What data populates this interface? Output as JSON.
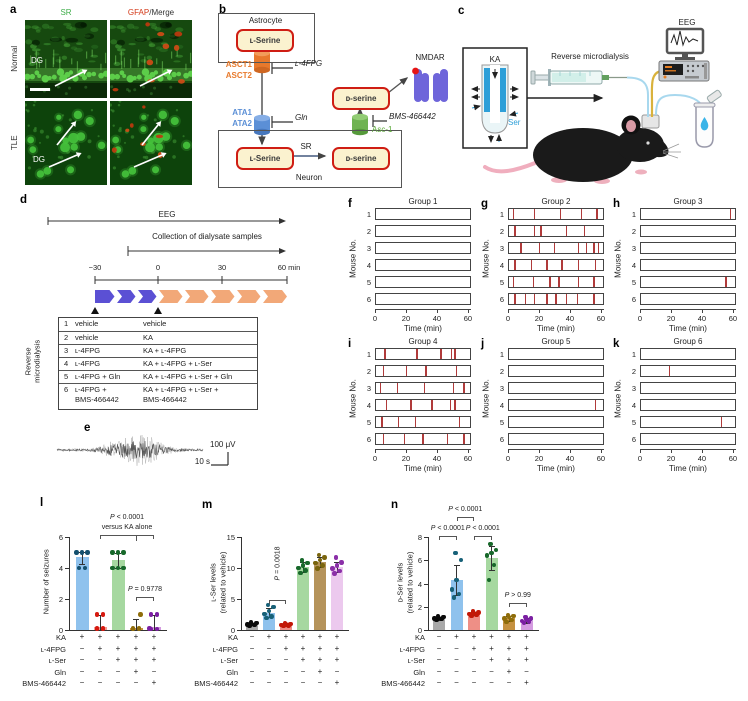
{
  "figure": {
    "a": {
      "letter": "a",
      "col_sr": "SR",
      "col_gfap": "GFAP",
      "col_merge": "/Merge",
      "row1": "Normal",
      "row2": "TLE",
      "dg": "DG"
    },
    "b": {
      "letter": "b",
      "astrocyte": "Astrocyte",
      "neuron": "Neuron",
      "pill_l_serine": "ʟ-Serine",
      "pill_d_serine": "ᴅ-serine",
      "asct1": "ASCT1",
      "asct2": "ASCT2",
      "ata1": "ATA1",
      "ata2": "ATA2",
      "inhib_l4fpg": "ʟ-4FPG",
      "inhib_gln": "Gln",
      "inhib_bms": "BMS-466442",
      "sr": "SR",
      "asc1": "Asc-1",
      "nmdar": "NMDAR"
    },
    "c": {
      "letter": "c",
      "ka": "KA",
      "ser": "Ser",
      "reverse": "Reverse microdialysis",
      "eeg": "EEG"
    },
    "d": {
      "letter": "d",
      "eeg": "EEG",
      "collection": "Collection of dialysate samples",
      "ticks": [
        "−30",
        "0",
        "30",
        "60 min"
      ],
      "side_label": "Reverse\nmicrodialysis",
      "table": [
        {
          "n": "1",
          "pre": "vehicle",
          "post": "vehicle"
        },
        {
          "n": "2",
          "pre": "vehicle",
          "post": "KA"
        },
        {
          "n": "3",
          "pre": "ʟ-4FPG",
          "post": "KA + ʟ-4FPG"
        },
        {
          "n": "4",
          "pre": "ʟ-4FPG",
          "post": "KA + ʟ-4FPG + ʟ-Ser"
        },
        {
          "n": "5",
          "pre": "ʟ-4FPG + Gln",
          "post": "KA + ʟ-4FPG + ʟ-Ser + Gln"
        },
        {
          "n": "6",
          "pre": "ʟ-4FPG +\nBMS-466442",
          "post": "KA + ʟ-4FPG + ʟ-Ser +\nBMS-466442"
        }
      ]
    },
    "e": {
      "letter": "e",
      "scale_v": "100 μV",
      "scale_t": "10 s"
    }
  },
  "colors": {
    "timeline_pre": "#5b50d4",
    "timeline_post": "#f2a878",
    "raster_tick": "#b03a3a",
    "sr_green": "#3fae4a",
    "gfap_red": "#d43a1a",
    "transporter_orange": "#e87a2c",
    "transporter_blue": "#5b8fd6",
    "transporter_green": "#6fb351",
    "nmdar_purple": "#6e65da"
  },
  "chart_data": [
    {
      "type": "raster",
      "panel_letter": "f",
      "title": "Group 1",
      "ylabel": "Mouse No.",
      "xlabel": "Time (min)",
      "xticks": [
        0,
        20,
        40,
        60
      ],
      "xmax": 62,
      "mice": [
        "1",
        "2",
        "3",
        "4",
        "5",
        "6"
      ],
      "events": [
        [],
        [],
        [],
        [],
        [],
        []
      ]
    },
    {
      "type": "raster",
      "panel_letter": "g",
      "title": "Group 2",
      "ylabel": "Mouse No.",
      "xlabel": "Time (min)",
      "xticks": [
        0,
        20,
        40,
        60
      ],
      "xmax": 62,
      "mice": [
        "1",
        "2",
        "3",
        "4",
        "5",
        "6"
      ],
      "events": [
        [
          3,
          17,
          34,
          48,
          58
        ],
        [
          4,
          17,
          21,
          38,
          50
        ],
        [
          8,
          20,
          30,
          46,
          51,
          56,
          59
        ],
        [
          4,
          15,
          25,
          35,
          46,
          57
        ],
        [
          3,
          16,
          27,
          33,
          46,
          56
        ],
        [
          4,
          11,
          17,
          25,
          31,
          38,
          45,
          56
        ]
      ]
    },
    {
      "type": "raster",
      "panel_letter": "h",
      "title": "Group 3",
      "ylabel": "Mouse No.",
      "xlabel": "Time (min)",
      "xticks": [
        0,
        20,
        40,
        60
      ],
      "xmax": 62,
      "mice": [
        "1",
        "2",
        "3",
        "4",
        "5",
        "6"
      ],
      "events": [
        [
          59
        ],
        [],
        [],
        [],
        [
          56
        ],
        []
      ]
    },
    {
      "type": "raster",
      "panel_letter": "i",
      "title": "Group 4",
      "ylabel": "Mouse No.",
      "xlabel": "Time (min)",
      "xticks": [
        0,
        20,
        40,
        60
      ],
      "xmax": 62,
      "mice": [
        "1",
        "2",
        "3",
        "4",
        "5",
        "6"
      ],
      "events": [
        [
          6,
          27,
          43,
          50,
          52
        ],
        [
          5,
          20,
          33,
          53
        ],
        [
          3,
          14,
          32,
          51,
          58
        ],
        [
          7,
          23,
          37,
          49,
          52
        ],
        [
          4,
          15,
          26,
          55
        ],
        [
          5,
          19,
          31,
          47,
          58
        ]
      ]
    },
    {
      "type": "raster",
      "panel_letter": "j",
      "title": "Group 5",
      "ylabel": "Mouse No.",
      "xlabel": "Time (min)",
      "xticks": [
        0,
        20,
        40,
        60
      ],
      "xmax": 62,
      "mice": [
        "1",
        "2",
        "3",
        "4",
        "5",
        "6"
      ],
      "events": [
        [],
        [],
        [],
        [
          57
        ],
        [],
        []
      ]
    },
    {
      "type": "raster",
      "panel_letter": "k",
      "title": "Group 6",
      "ylabel": "Mouse No.",
      "xlabel": "Time (min)",
      "xticks": [
        0,
        20,
        40,
        60
      ],
      "xmax": 62,
      "mice": [
        "1",
        "2",
        "3",
        "4",
        "5",
        "6"
      ],
      "events": [
        [],
        [
          19
        ],
        [],
        [],
        [
          53
        ],
        []
      ]
    },
    {
      "type": "bar",
      "id": "l",
      "panel_letter": "l",
      "ylabel_lines": [
        "Number of seizures"
      ],
      "yticks": [
        0,
        2,
        4,
        6
      ],
      "groups": [
        {
          "bar": 4.7,
          "err": [
            4.25,
            5.05
          ],
          "points": [
            4,
            4,
            5,
            5,
            5
          ],
          "bar_color": "#8fc2ed",
          "dot_color": "#14506e"
        },
        {
          "bar": 0.17,
          "err": [
            0.02,
            0.95
          ],
          "points": [
            0.05,
            0.05,
            0.1,
            0.1,
            1,
            1
          ],
          "bar_color": "#f29a92",
          "dot_color": "#d6190f"
        },
        {
          "bar": 4.5,
          "err": [
            4.0,
            5.0
          ],
          "points": [
            4,
            4,
            4,
            5,
            5,
            5
          ],
          "bar_color": "#a6d8a0",
          "dot_color": "#17682a"
        },
        {
          "bar": 0.15,
          "err": [
            0.02,
            0.7
          ],
          "points": [
            0.05,
            0.05,
            0.1,
            0.1,
            1
          ],
          "bar_color": "#c5913f",
          "dot_color": "#8f6d0a"
        },
        {
          "bar": 0.2,
          "err": [
            0.02,
            0.95
          ],
          "points": [
            0.05,
            0.05,
            0.1,
            1,
            1
          ],
          "bar_color": "#d49be0",
          "dot_color": "#7b1fa2"
        }
      ],
      "brackets": [
        {
          "from": 1,
          "to": 4,
          "mid": 3,
          "y": 6.15,
          "lines": [
            "P < 0.0001",
            "versus KA alone"
          ]
        },
        {
          "from": 3,
          "to": 4,
          "y": 2.15,
          "lines": [
            "P = 0.9778"
          ]
        }
      ],
      "conditions": {
        "labels": [
          "KA",
          "ʟ-4FPG",
          "ʟ-Ser",
          "Gln",
          "BMS-466442"
        ],
        "matrix": [
          [
            "+",
            "+",
            "+",
            "+",
            "+"
          ],
          [
            "−",
            "+",
            "+",
            "+",
            "+"
          ],
          [
            "−",
            "−",
            "+",
            "+",
            "+"
          ],
          [
            "−",
            "−",
            "−",
            "+",
            "−"
          ],
          [
            "−",
            "−",
            "−",
            "−",
            "+"
          ]
        ]
      }
    },
    {
      "type": "bar",
      "id": "m",
      "panel_letter": "m",
      "ylabel_lines": [
        "ʟ-Ser levels",
        "(related to vehicle)"
      ],
      "yticks": [
        0,
        5,
        10,
        15
      ],
      "groups": [
        {
          "bar": 1.0,
          "err": [
            0.75,
            1.2
          ],
          "points": [
            0.65,
            0.8,
            0.9,
            1.0,
            1.1,
            1.2
          ],
          "bar_color": "#a9a9a9",
          "dot_color": "#0a0a0a"
        },
        {
          "bar": 2.8,
          "err": [
            2.1,
            3.6
          ],
          "points": [
            1.9,
            2.2,
            2.6,
            3.1,
            3.7,
            4.0
          ],
          "bar_color": "#8fc2ed",
          "dot_color": "#176178"
        },
        {
          "bar": 0.85,
          "err": [
            0.7,
            1.0
          ],
          "points": [
            0.65,
            0.75,
            0.85,
            0.9,
            1.0,
            1.05
          ],
          "bar_color": "#ee8f86",
          "dot_color": "#c21807"
        },
        {
          "bar": 10.2,
          "err": [
            9.4,
            11.0
          ],
          "points": [
            9.2,
            9.6,
            10.0,
            10.4,
            10.8,
            11.2
          ],
          "bar_color": "#a6d8a0",
          "dot_color": "#17682a"
        },
        {
          "bar": 10.9,
          "err": [
            10.1,
            11.8
          ],
          "points": [
            9.9,
            10.4,
            10.8,
            11.3,
            11.7,
            12.1
          ],
          "bar_color": "#b5935a",
          "dot_color": "#7a650e"
        },
        {
          "bar": 10.1,
          "err": [
            9.3,
            11.0
          ],
          "points": [
            9.1,
            9.5,
            9.9,
            10.4,
            10.9,
            11.7
          ],
          "bar_color": "#ecc9ee",
          "dot_color": "#8b2fa8"
        }
      ],
      "brackets": [
        {
          "from": 1,
          "to": 2,
          "y": 4.9,
          "lines": [
            "P = 0.0018"
          ],
          "rotate": true
        }
      ],
      "conditions": {
        "labels": [
          "KA",
          "ʟ-4FPG",
          "ʟ-Ser",
          "Gln",
          "BMS-466442"
        ],
        "matrix": [
          [
            "−",
            "+",
            "+",
            "+",
            "+",
            "+"
          ],
          [
            "−",
            "−",
            "+",
            "+",
            "+",
            "+"
          ],
          [
            "−",
            "−",
            "−",
            "+",
            "+",
            "+"
          ],
          [
            "−",
            "−",
            "−",
            "−",
            "+",
            "−"
          ],
          [
            "−",
            "−",
            "−",
            "−",
            "−",
            "+"
          ]
        ]
      }
    },
    {
      "type": "bar",
      "id": "n",
      "panel_letter": "n",
      "ylabel_lines": [
        "ᴅ-Ser levels",
        "(related to vehicle)"
      ],
      "yticks": [
        0,
        2,
        4,
        6,
        8
      ],
      "groups": [
        {
          "bar": 1.0,
          "err": [
            0.9,
            1.15
          ],
          "points": [
            0.85,
            0.95,
            1.0,
            1.05,
            1.1,
            1.2
          ],
          "bar_color": "#a9a9a9",
          "dot_color": "#0a0a0a"
        },
        {
          "bar": 4.3,
          "err": [
            3.0,
            5.6
          ],
          "points": [
            2.8,
            3.1,
            3.5,
            4.3,
            6.0,
            6.6
          ],
          "bar_color": "#8fc2ed",
          "dot_color": "#176178"
        },
        {
          "bar": 1.4,
          "err": [
            1.25,
            1.55
          ],
          "points": [
            1.2,
            1.3,
            1.35,
            1.45,
            1.5,
            1.6
          ],
          "bar_color": "#ee8f86",
          "dot_color": "#c21807"
        },
        {
          "bar": 6.2,
          "err": [
            5.2,
            7.2
          ],
          "points": [
            4.3,
            5.6,
            6.4,
            6.6,
            6.9,
            7.4
          ],
          "bar_color": "#a6d8a0",
          "dot_color": "#17682a"
        },
        {
          "bar": 1.0,
          "err": [
            0.8,
            1.2
          ],
          "points": [
            0.7,
            0.85,
            1.0,
            1.1,
            1.2,
            1.3
          ],
          "bar_color": "#c5913f",
          "dot_color": "#8f6d0a"
        },
        {
          "bar": 0.8,
          "err": [
            0.6,
            1.0
          ],
          "points": [
            0.6,
            0.7,
            0.8,
            0.9,
            1.0,
            1.1
          ],
          "bar_color": "#d49be0",
          "dot_color": "#7b1fa2"
        }
      ],
      "brackets": [
        {
          "from": 0,
          "to": 1,
          "y": 8.1,
          "lines": [
            "P < 0.0001"
          ]
        },
        {
          "from": 2,
          "to": 3,
          "y": 8.1,
          "lines": [
            "P < 0.0001"
          ]
        },
        {
          "from": 1,
          "to": 2,
          "y": 9.75,
          "lines": [
            "P < 0.0001"
          ]
        },
        {
          "from": 4,
          "to": 5,
          "y": 2.35,
          "lines": [
            "P > 0.99"
          ]
        }
      ],
      "conditions": {
        "labels": [
          "KA",
          "ʟ-4FPG",
          "ʟ-Ser",
          "Gln",
          "BMS-466442"
        ],
        "matrix": [
          [
            "−",
            "+",
            "+",
            "+",
            "+",
            "+"
          ],
          [
            "−",
            "−",
            "+",
            "+",
            "+",
            "+"
          ],
          [
            "−",
            "−",
            "−",
            "+",
            "+",
            "+"
          ],
          [
            "−",
            "−",
            "−",
            "−",
            "+",
            "−"
          ],
          [
            "−",
            "−",
            "−",
            "−",
            "−",
            "+"
          ]
        ]
      }
    }
  ]
}
